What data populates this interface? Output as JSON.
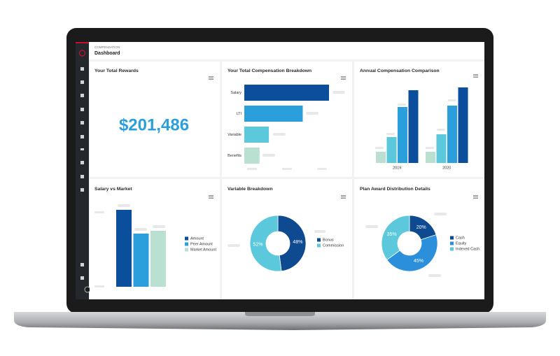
{
  "dashboard": {
    "section": "COMPENSATION",
    "title": "Dashboard",
    "rewards_title": "Your Total Rewards",
    "rewards_value": "$201,486"
  },
  "chart_data": [
    {
      "type": "hbar",
      "title": "Your Total Compensation Breakdown",
      "categories": [
        "Salary",
        "LTI",
        "Variable",
        "Benefits"
      ],
      "values": [
        100,
        69,
        29,
        18
      ],
      "colors": [
        "#0b4f9c",
        "#2b9fdc",
        "#5bc8db",
        "#b9e0d0"
      ]
    },
    {
      "type": "bar",
      "title": "Annual Compensation Comparison",
      "categories": [
        "2019",
        "2020"
      ],
      "series": [
        {
          "color": "#b9e0d0",
          "values": [
            16,
            16
          ]
        },
        {
          "color": "#5bc8db",
          "values": [
            37,
            41
          ]
        },
        {
          "color": "#2b9fdc",
          "values": [
            80,
            82
          ]
        },
        {
          "color": "#0b4f9c",
          "values": [
            104,
            108
          ]
        }
      ]
    },
    {
      "type": "bar",
      "title": "Salary vs Market",
      "categories": [
        null
      ],
      "series": [
        {
          "name": "Amount",
          "color": "#0b4f9c",
          "values": [
            110
          ]
        },
        {
          "name": "Peer Amount",
          "color": "#2b9fdc",
          "values": [
            76
          ]
        },
        {
          "name": "Market Amount",
          "color": "#b9e0d0",
          "values": [
            80
          ]
        }
      ]
    },
    {
      "type": "donut",
      "title": "Variable Breakdown",
      "categories": [
        "Bonus",
        "Commission"
      ],
      "values": [
        48,
        52
      ],
      "value_labels": [
        "48%",
        "52%"
      ],
      "colors": [
        "#0d4a8f",
        "#5bc8db"
      ]
    },
    {
      "type": "donut",
      "title": "Plan Award Distribution Details",
      "categories": [
        "Cash",
        "Equity",
        "Indexed Cash"
      ],
      "values": [
        20,
        45,
        35
      ],
      "value_labels": [
        "20%",
        "45%",
        "35%"
      ],
      "colors": [
        "#0d4a8f",
        "#2b8fdc",
        "#5bc8db"
      ]
    }
  ]
}
